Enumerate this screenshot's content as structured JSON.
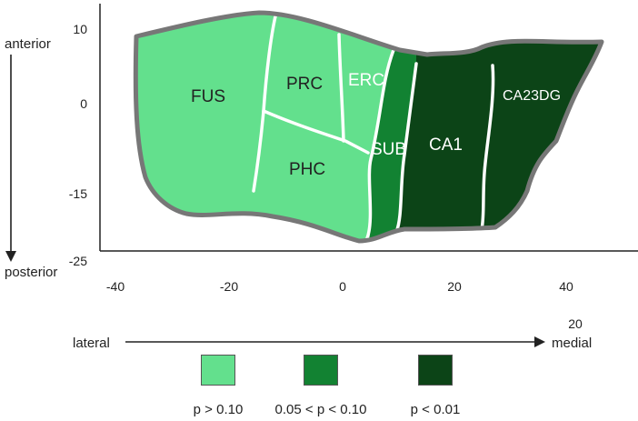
{
  "axes": {
    "y_top_label": "anterior",
    "y_bottom_label": "posterior",
    "x_left_label": "lateral",
    "x_right_label": "medial",
    "x_ticks": [
      "-40",
      "-20",
      "0",
      "20",
      "40"
    ],
    "y_ticks": [
      "10",
      "0",
      "-15",
      "-25"
    ],
    "extra_tick": "20"
  },
  "regions": {
    "fus": "FUS",
    "prc": "PRC",
    "erc": "ERC",
    "phc": "PHC",
    "sub": "SUB",
    "ca1": "CA1",
    "ca23dg": "CA23DG"
  },
  "colors": {
    "light": "#63e08d",
    "medium": "#128232",
    "dark": "#0c4417",
    "outline": "#777777",
    "divider": "#ffffff"
  },
  "legend": [
    {
      "label": "p > 0.10",
      "color": "#63e08d"
    },
    {
      "label": "0.05 < p < 0.10",
      "color": "#128232"
    },
    {
      "label": "p < 0.01",
      "color": "#0c4417"
    }
  ]
}
